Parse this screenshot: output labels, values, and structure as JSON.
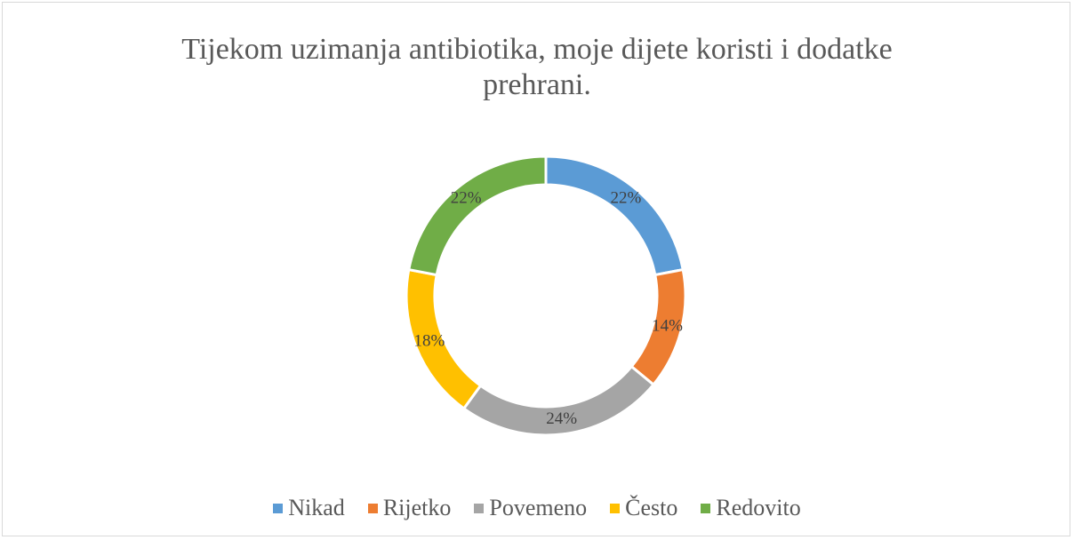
{
  "chart_data": {
    "type": "donut",
    "title": "Tijekom uzimanja antibiotika, moje dijete koristi i dodatke prehrani.",
    "categories": [
      "Nikad",
      "Rijetko",
      "Povemeno",
      "Često",
      "Redovito"
    ],
    "values": [
      22,
      14,
      24,
      18,
      22
    ],
    "value_labels": [
      "22%",
      "14%",
      "24%",
      "18%",
      "22%"
    ],
    "colors": [
      "#5b9bd5",
      "#ed7d31",
      "#a5a5a5",
      "#ffc000",
      "#70ad47"
    ],
    "legend": "bottom"
  }
}
